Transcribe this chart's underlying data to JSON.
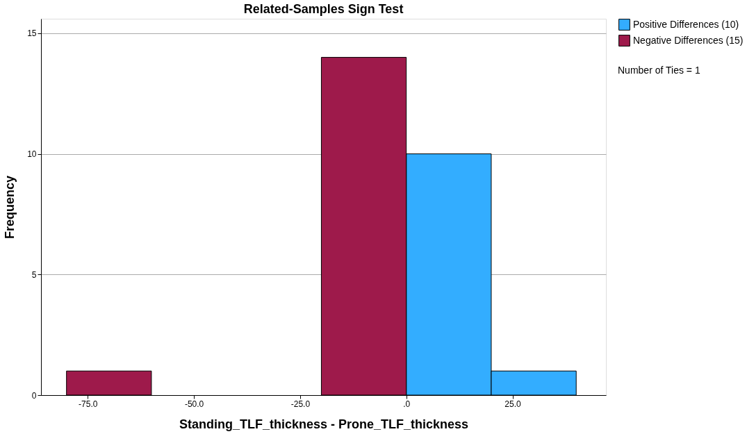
{
  "chart_data": {
    "type": "histogram",
    "title": "Related-Samples Sign Test",
    "xlabel": "Standing_TLF_thickness - Prone_TLF_thickness",
    "ylabel": "Frequency",
    "bins": [
      -80,
      -60,
      -40,
      -20,
      0,
      20,
      40
    ],
    "series": [
      {
        "name": "Positive Differences (10)",
        "color": "#33adff",
        "values": [
          0,
          0,
          0,
          0,
          10,
          1
        ]
      },
      {
        "name": "Negative Differences (15)",
        "color": "#9e1a4b",
        "values": [
          1,
          0,
          0,
          14,
          0,
          0
        ]
      }
    ],
    "xlim": [
      -86,
      47
    ],
    "xticks": [
      {
        "value": -75,
        "label": "-75.0"
      },
      {
        "value": -50,
        "label": "-50.0"
      },
      {
        "value": -25,
        "label": "-25.0"
      },
      {
        "value": 0,
        "label": ".0"
      },
      {
        "value": 25,
        "label": "25.0"
      }
    ],
    "ylim": [
      0,
      15.6
    ],
    "yticks": [
      0,
      5,
      10,
      15
    ],
    "grid": "y",
    "legend": "top right",
    "annotations": [
      "Number of Ties = 1"
    ]
  }
}
